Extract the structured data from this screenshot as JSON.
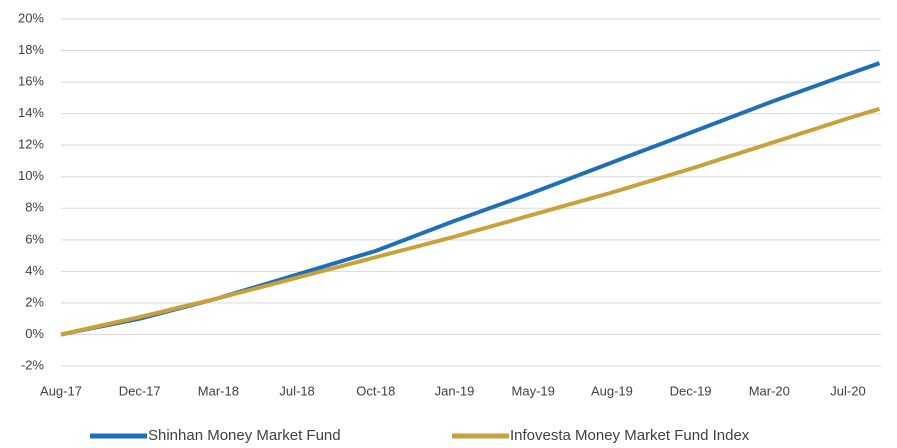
{
  "chart_data": {
    "type": "line",
    "categories": [
      "Aug-17",
      null,
      null,
      null,
      null,
      "Dec-17",
      null,
      null,
      null,
      null,
      "Mar-18",
      null,
      null,
      null,
      null,
      "Jul-18",
      null,
      null,
      null,
      null,
      "Oct-18",
      null,
      null,
      null,
      null,
      "Jan-19",
      null,
      null,
      null,
      null,
      "May-19",
      null,
      null,
      null,
      null,
      "Aug-19",
      null,
      null,
      null,
      null,
      "Dec-19",
      null,
      null,
      null,
      null,
      "Mar-20",
      null,
      null,
      null,
      null,
      "Jul-20",
      null,
      null
    ],
    "series": [
      {
        "name": "Shinhan Money Market Fund",
        "color": "#1f6fb8",
        "values": [
          0,
          0.2,
          0.4,
          0.6,
          0.8,
          1.0,
          1.26,
          1.52,
          1.78,
          2.04,
          2.3,
          2.6,
          2.9,
          3.2,
          3.5,
          3.8,
          4.1,
          4.4,
          4.7,
          5.0,
          5.3,
          5.68,
          6.06,
          6.44,
          6.82,
          7.2,
          7.56,
          7.92,
          8.28,
          8.64,
          9.0,
          9.38,
          9.76,
          10.14,
          10.52,
          10.9,
          11.28,
          11.66,
          12.04,
          12.42,
          12.8,
          13.18,
          13.56,
          13.94,
          14.32,
          14.7,
          15.06,
          15.42,
          15.78,
          16.14,
          16.5,
          16.85,
          17.2
        ]
      },
      {
        "name": "Infovesta Money Market Fund Index",
        "color": "#c9a03a",
        "values": [
          0,
          0.22,
          0.44,
          0.66,
          0.88,
          1.1,
          1.34,
          1.58,
          1.82,
          2.06,
          2.3,
          2.56,
          2.82,
          3.08,
          3.34,
          3.6,
          3.86,
          4.12,
          4.38,
          4.64,
          4.9,
          5.16,
          5.42,
          5.68,
          5.94,
          6.2,
          6.48,
          6.76,
          7.04,
          7.32,
          7.6,
          7.88,
          8.16,
          8.44,
          8.72,
          9.0,
          9.3,
          9.6,
          9.9,
          10.2,
          10.5,
          10.82,
          11.14,
          11.46,
          11.78,
          12.1,
          12.42,
          12.74,
          13.06,
          13.38,
          13.7,
          14.0,
          14.3
        ]
      }
    ],
    "ylim": [
      -2,
      20
    ],
    "yticks": [
      {
        "value": -2,
        "label": "-2%"
      },
      {
        "value": 0,
        "label": "0%"
      },
      {
        "value": 2,
        "label": "2%"
      },
      {
        "value": 4,
        "label": "4%"
      },
      {
        "value": 6,
        "label": "6%"
      },
      {
        "value": 8,
        "label": "8%"
      },
      {
        "value": 10,
        "label": "10%"
      },
      {
        "value": 12,
        "label": "12%"
      },
      {
        "value": 14,
        "label": "14%"
      },
      {
        "value": 16,
        "label": "16%"
      },
      {
        "value": 18,
        "label": "18%"
      },
      {
        "value": 20,
        "label": "20%"
      }
    ],
    "grid": true
  }
}
